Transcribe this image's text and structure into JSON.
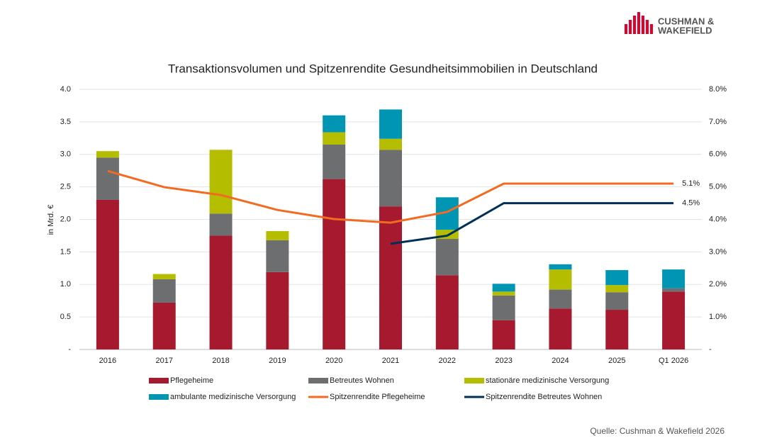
{
  "brand": {
    "line1": "CUSHMAN &",
    "line2": "WAKEFIELD"
  },
  "source": "Quelle: Cushman & Wakefield 2026",
  "chart_data": {
    "type": "bar",
    "title": "Transaktionsvolumen und Spitzenrendite Gesundheitsimmobilien in Deutschland",
    "ylabel": "in Mrd. €",
    "categories": [
      "2016",
      "2017",
      "2018",
      "2019",
      "2020",
      "2021",
      "2022",
      "2023",
      "2024",
      "2025",
      "Q1 2026"
    ],
    "series": [
      {
        "name": "Pflegeheime",
        "type": "bar",
        "color": "#a6192e",
        "values": [
          2.3,
          0.72,
          1.75,
          1.19,
          2.62,
          2.2,
          1.14,
          0.45,
          0.63,
          0.61,
          0.89
        ]
      },
      {
        "name": "Betreutes Wohnen",
        "type": "bar",
        "color": "#6d6e6f",
        "values": [
          0.65,
          0.36,
          0.34,
          0.49,
          0.53,
          0.87,
          0.56,
          0.38,
          0.29,
          0.27,
          0.05
        ]
      },
      {
        "name": "stationäre medizinische Versorgung",
        "type": "bar",
        "color": "#b5bd00",
        "values": [
          0.1,
          0.08,
          0.98,
          0.14,
          0.19,
          0.17,
          0.14,
          0.06,
          0.31,
          0.11,
          0
        ]
      },
      {
        "name": "ambulante medizinische Versorgung",
        "type": "bar",
        "color": "#0095b3",
        "values": [
          0,
          0,
          0,
          0,
          0.26,
          0.45,
          0.5,
          0.12,
          0.08,
          0.23,
          0.29
        ]
      },
      {
        "name": "Spitzenrendite Pflegeheime",
        "type": "line",
        "axis": "y2",
        "color": "#f26b21",
        "values": [
          5.49,
          4.99,
          4.75,
          4.29,
          4.01,
          3.9,
          4.23,
          5.1,
          5.1,
          5.1,
          5.1
        ],
        "value_labels": [
          null,
          null,
          null,
          null,
          null,
          null,
          null,
          null,
          null,
          null,
          "5.1%"
        ]
      },
      {
        "name": "Spitzenrendite Betreutes Wohnen",
        "type": "line",
        "axis": "y2",
        "color": "#003057",
        "values": [
          null,
          null,
          null,
          null,
          null,
          3.25,
          3.5,
          4.5,
          4.5,
          4.5,
          4.5
        ],
        "value_labels": [
          null,
          null,
          null,
          null,
          null,
          null,
          null,
          null,
          null,
          null,
          "4.5%"
        ]
      }
    ],
    "ylim": [
      0,
      4
    ],
    "yticks": [
      {
        "value": 0,
        "label": "-"
      },
      0.5,
      {
        "value": 1,
        "label": "1.0"
      },
      1.5,
      {
        "value": 2,
        "label": "2.0"
      },
      2.5,
      {
        "value": 3,
        "label": "3.0"
      },
      3.5,
      {
        "value": 4,
        "label": "4.0"
      }
    ],
    "y2lim": [
      0,
      8
    ],
    "y2ticks": [
      {
        "value": 0,
        "label": "-"
      },
      {
        "value": 1,
        "label": "1.0%"
      },
      {
        "value": 2,
        "label": "2.0%"
      },
      {
        "value": 3,
        "label": "3.0%"
      },
      {
        "value": 4,
        "label": "4.0%"
      },
      {
        "value": 5,
        "label": "5.0%"
      },
      {
        "value": 6,
        "label": "6.0%"
      },
      {
        "value": 7,
        "label": "7.0%"
      },
      {
        "value": 8,
        "label": "8.0%"
      }
    ],
    "grid": true
  }
}
